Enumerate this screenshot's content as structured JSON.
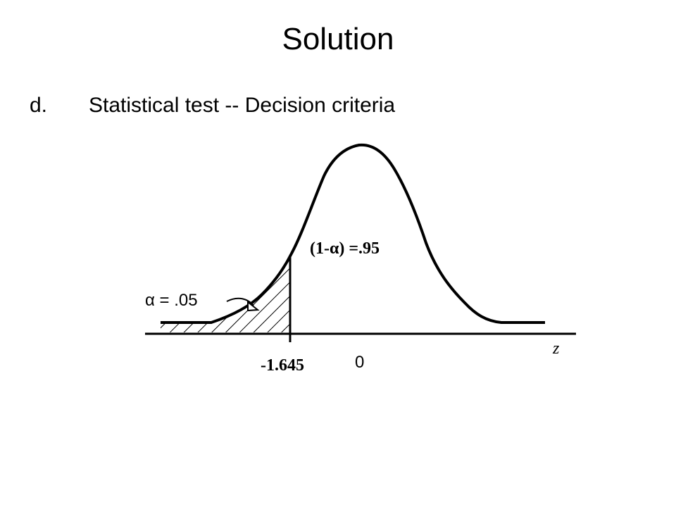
{
  "slide": {
    "title": "Solution",
    "bullet_marker": "d.",
    "bullet_text": "Statistical  test -- Decision  criteria"
  },
  "figure": {
    "alpha_label": "α = .05",
    "confidence_label": "(1-α) =.95",
    "critical_value_label": "-1.645",
    "mean_label": "0",
    "axis_label": "z"
  }
}
